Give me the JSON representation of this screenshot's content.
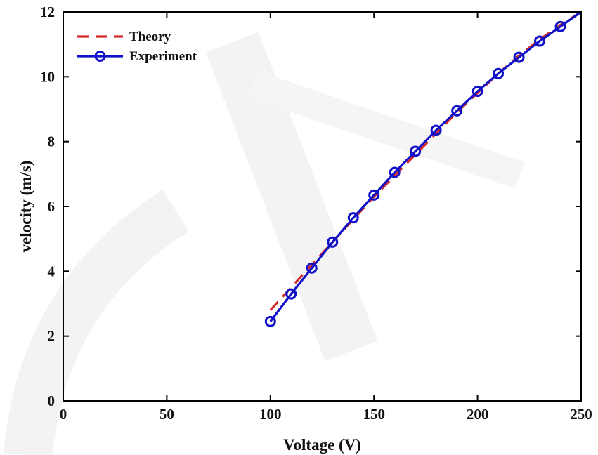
{
  "chart_data": {
    "type": "line",
    "title": "",
    "xlabel": "Voltage (V)",
    "ylabel": "velocity (m/s)",
    "xlim": [
      0,
      250
    ],
    "ylim": [
      0,
      12
    ],
    "xticks": [
      0,
      50,
      100,
      150,
      200,
      250
    ],
    "yticks": [
      0,
      2,
      4,
      6,
      8,
      10,
      12
    ],
    "grid": false,
    "legend_position": "top-left",
    "series": [
      {
        "name": "Theory",
        "style": "dashed",
        "color": "#d42a2a",
        "x": [
          100,
          110,
          120,
          130,
          140,
          150,
          160,
          170,
          180,
          190,
          200,
          210,
          220,
          230,
          240,
          250
        ],
        "y": [
          2.8,
          3.5,
          4.2,
          4.9,
          5.6,
          6.3,
          6.95,
          7.6,
          8.25,
          8.9,
          9.5,
          10.1,
          10.65,
          11.15,
          11.6,
          12.0
        ]
      },
      {
        "name": "Experiment",
        "style": "solid-circle",
        "color": "#1010c8",
        "x": [
          100,
          110,
          120,
          130,
          140,
          150,
          160,
          170,
          180,
          190,
          200,
          210,
          220,
          230,
          240,
          250
        ],
        "y": [
          2.45,
          3.3,
          4.1,
          4.9,
          5.65,
          6.35,
          7.05,
          7.7,
          8.35,
          8.95,
          9.55,
          10.1,
          10.6,
          11.1,
          11.55,
          12.0
        ],
        "markers": [
          true,
          true,
          true,
          true,
          true,
          true,
          true,
          true,
          true,
          true,
          true,
          true,
          true,
          true,
          true,
          false
        ]
      }
    ]
  }
}
